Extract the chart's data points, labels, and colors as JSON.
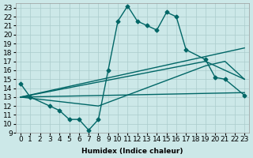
{
  "xlabel": "Humidex (Indice chaleur)",
  "background_color": "#cce8e8",
  "line_color": "#006666",
  "xlim": [
    -0.5,
    23.5
  ],
  "ylim": [
    9,
    23.5
  ],
  "yticks": [
    9,
    10,
    11,
    12,
    13,
    14,
    15,
    16,
    17,
    18,
    19,
    20,
    21,
    22,
    23
  ],
  "xticks": [
    0,
    1,
    2,
    3,
    4,
    5,
    6,
    7,
    8,
    9,
    10,
    11,
    12,
    13,
    14,
    15,
    16,
    17,
    18,
    19,
    20,
    21,
    22,
    23
  ],
  "curve1_x": [
    0,
    1,
    3,
    4,
    5,
    6,
    7,
    8,
    9,
    10,
    11,
    12,
    13,
    14,
    15,
    16,
    17,
    19,
    20,
    21,
    23
  ],
  "curve1_y": [
    14.5,
    13.0,
    12.0,
    11.5,
    10.5,
    10.5,
    9.3,
    10.5,
    16.0,
    21.5,
    23.2,
    21.5,
    21.0,
    20.5,
    22.5,
    22.0,
    18.3,
    17.2,
    15.2,
    15.0,
    13.2
  ],
  "line1_x": [
    0,
    23
  ],
  "line1_y": [
    13.0,
    18.5
  ],
  "line2_x": [
    0,
    19,
    23
  ],
  "line2_y": [
    13.0,
    17.0,
    15.0
  ],
  "line3_x": [
    0,
    8,
    19,
    21,
    23
  ],
  "line3_y": [
    13.0,
    12.0,
    16.5,
    17.0,
    15.0
  ],
  "line4_x": [
    0,
    23
  ],
  "line4_y": [
    13.0,
    13.5
  ],
  "grid_color": "#aacccc",
  "marker": "D",
  "markersize": 2.5,
  "linewidth": 1.0,
  "font_size": 6.5
}
